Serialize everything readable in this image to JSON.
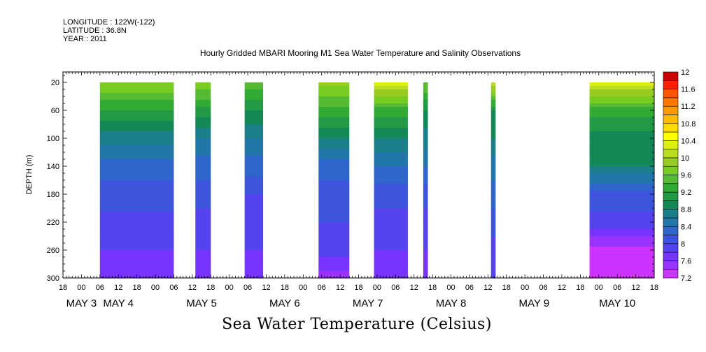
{
  "meta": {
    "longitude": "LONGITUDE : 122W(-122)",
    "latitude": "LATITUDE : 36.8N",
    "year": "YEAR : 2011"
  },
  "chart_data": {
    "type": "heatmap",
    "title": "Hourly Gridded MBARI Mooring M1 Sea Water Temperature and Salinity Observations",
    "xlabel": "Sea Water Temperature (Celsius)",
    "ylabel": "DEPTH (m)",
    "x_unit": "hours since 2011-05-02 18:00",
    "xlim": [
      0,
      192
    ],
    "ylim": [
      300,
      5
    ],
    "y_ticks": [
      20,
      60,
      100,
      140,
      180,
      220,
      260,
      300
    ],
    "x_hour_ticks": [
      "18",
      "00",
      "06",
      "12",
      "18",
      "00",
      "06",
      "12",
      "18",
      "00",
      "06",
      "12",
      "18",
      "00",
      "06",
      "12",
      "18",
      "00",
      "06",
      "12",
      "18",
      "00",
      "06",
      "12",
      "18",
      "00",
      "06",
      "12",
      "18",
      "00",
      "06",
      "12",
      "18"
    ],
    "day_labels": [
      {
        "text": "MAY  3",
        "hour": 6
      },
      {
        "text": "MAY  4",
        "hour": 18
      },
      {
        "text": "MAY  5",
        "hour": 45
      },
      {
        "text": "MAY  6",
        "hour": 72
      },
      {
        "text": "MAY  7",
        "hour": 99
      },
      {
        "text": "MAY  8",
        "hour": 126
      },
      {
        "text": "MAY  9",
        "hour": 153
      },
      {
        "text": "MAY 10",
        "hour": 180
      }
    ],
    "colorbar": {
      "levels": [
        7.2,
        7.4,
        7.6,
        7.8,
        8.0,
        8.2,
        8.4,
        8.6,
        8.8,
        9.0,
        9.2,
        9.4,
        9.6,
        9.8,
        10.0,
        10.2,
        10.4,
        10.6,
        10.8,
        11.0,
        11.2,
        11.4,
        11.6,
        11.8,
        12.0
      ],
      "labels": [
        "7.2",
        "7.6",
        "8",
        "8.4",
        "8.8",
        "9.2",
        "9.6",
        "10",
        "10.4",
        "10.8",
        "11.2",
        "11.6",
        "12"
      ],
      "colors": [
        "#cc33ff",
        "#9933ff",
        "#7733ff",
        "#5544ee",
        "#3d55dd",
        "#2f66cc",
        "#2277aa",
        "#1a7f88",
        "#118855",
        "#229944",
        "#33aa33",
        "#55bb33",
        "#77cc22",
        "#99cc22",
        "#bbdd22",
        "#ddee11",
        "#ffff00",
        "#ffdd00",
        "#ffbb00",
        "#ff9900",
        "#ff7700",
        "#ff5500",
        "#ff2200",
        "#cc0000"
      ]
    },
    "depths": [
      20,
      60,
      100,
      140,
      180,
      220,
      260,
      300
    ],
    "columns": [
      {
        "start": 12,
        "end": 36,
        "temps": [
          9.8,
          9.2,
          8.7,
          8.3,
          8.1,
          7.95,
          7.8,
          7.65
        ]
      },
      {
        "start": 43,
        "end": 48,
        "temps": [
          9.8,
          9.1,
          8.6,
          8.3,
          8.1,
          7.9,
          7.8,
          7.7
        ]
      },
      {
        "start": 59,
        "end": 65,
        "temps": [
          9.5,
          9.0,
          8.6,
          8.3,
          8.0,
          7.9,
          7.8,
          7.6
        ]
      },
      {
        "start": 83,
        "end": 93,
        "temps": [
          9.9,
          9.3,
          8.8,
          8.3,
          8.1,
          8.0,
          7.9,
          7.5
        ]
      },
      {
        "start": 101,
        "end": 112,
        "temps": [
          10.3,
          9.3,
          8.8,
          8.4,
          8.1,
          7.9,
          7.8,
          7.7
        ]
      },
      {
        "start": 117,
        "end": 118.5,
        "temps": [
          9.6,
          9.0,
          8.7,
          8.4,
          8.1,
          7.9,
          7.8,
          7.7
        ]
      },
      {
        "start": 139,
        "end": 140.5,
        "temps": [
          10.2,
          9.0,
          8.8,
          8.5,
          8.3,
          8.1,
          7.9,
          7.8
        ]
      },
      {
        "start": 171,
        "end": 192,
        "temps": [
          10.3,
          9.3,
          8.9,
          8.8,
          8.1,
          7.95,
          7.3,
          7.25
        ]
      }
    ]
  }
}
